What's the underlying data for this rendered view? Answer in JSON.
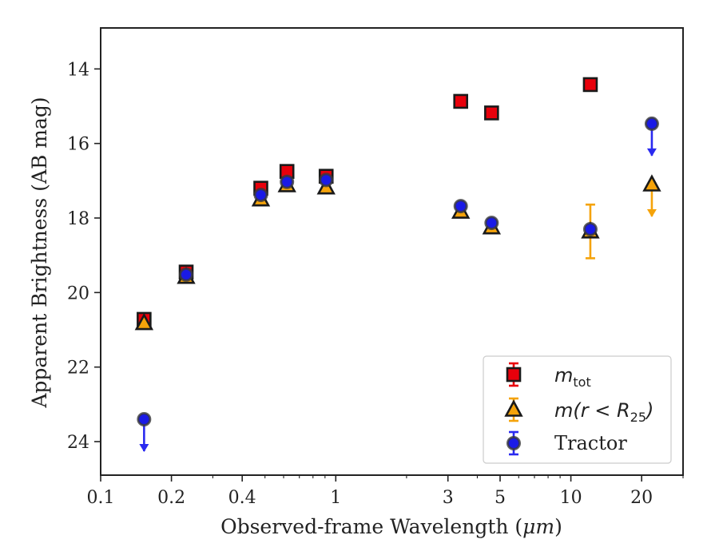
{
  "chart_data": {
    "type": "scatter",
    "xlabel_prefix": "Observed-frame Wavelength (",
    "xlabel_unit": "μm",
    "xlabel_suffix": ")",
    "ylabel": "Apparent Brightness (AB mag)",
    "xscale": "log",
    "xlim": [
      0.1,
      30
    ],
    "ylim": [
      24.9,
      12.9
    ],
    "y_inverted": true,
    "grid": false,
    "legend_position": "lower-right",
    "x_ticks": [
      {
        "value": 0.1,
        "label": "0.1"
      },
      {
        "value": 0.2,
        "label": "0.2"
      },
      {
        "value": 0.4,
        "label": "0.4"
      },
      {
        "value": 1,
        "label": "1"
      },
      {
        "value": 3,
        "label": "3"
      },
      {
        "value": 5,
        "label": "5"
      },
      {
        "value": 10,
        "label": "10"
      },
      {
        "value": 20,
        "label": "20"
      }
    ],
    "y_ticks": [
      {
        "value": 14,
        "label": "14"
      },
      {
        "value": 16,
        "label": "16"
      },
      {
        "value": 18,
        "label": "18"
      },
      {
        "value": 20,
        "label": "20"
      },
      {
        "value": 22,
        "label": "22"
      },
      {
        "value": 24,
        "label": "24"
      }
    ],
    "series": [
      {
        "name": "m_tot",
        "legend_main": "m",
        "legend_sub": "tot",
        "marker": "square",
        "color": "#e8000b",
        "ecolor": "#e8000b",
        "points": [
          {
            "x": 0.153,
            "y": 20.72
          },
          {
            "x": 0.231,
            "y": 19.45
          },
          {
            "x": 0.48,
            "y": 17.2
          },
          {
            "x": 0.62,
            "y": 16.75
          },
          {
            "x": 0.91,
            "y": 16.88
          },
          {
            "x": 3.4,
            "y": 14.87
          },
          {
            "x": 4.6,
            "y": 15.18
          },
          {
            "x": 12.1,
            "y": 14.42
          }
        ]
      },
      {
        "name": "m(r < R_25)",
        "legend_main": "m(r < R",
        "legend_sub": "25",
        "legend_tail": ")",
        "marker": "triangle",
        "color": "#f5a30a",
        "ecolor": "#f5a30a",
        "points": [
          {
            "x": 0.153,
            "y": 20.82
          },
          {
            "x": 0.231,
            "y": 19.58
          },
          {
            "x": 0.48,
            "y": 17.5
          },
          {
            "x": 0.62,
            "y": 17.12
          },
          {
            "x": 0.91,
            "y": 17.18
          },
          {
            "x": 3.4,
            "y": 17.83
          },
          {
            "x": 4.6,
            "y": 18.25
          },
          {
            "x": 12.1,
            "y": 18.36,
            "yerr": 0.72
          },
          {
            "x": 22.1,
            "y": 17.1,
            "upper_limit": true
          }
        ]
      },
      {
        "name": "Tractor",
        "legend_main": "Tractor",
        "marker": "circle",
        "color": "#1a1ae6",
        "ecolor": "#2a2af0",
        "points": [
          {
            "x": 0.153,
            "y": 23.4,
            "upper_limit": true
          },
          {
            "x": 0.231,
            "y": 19.52
          },
          {
            "x": 0.48,
            "y": 17.38
          },
          {
            "x": 0.62,
            "y": 17.03
          },
          {
            "x": 0.91,
            "y": 16.98
          },
          {
            "x": 3.4,
            "y": 17.68
          },
          {
            "x": 4.6,
            "y": 18.13
          },
          {
            "x": 12.1,
            "y": 18.3
          },
          {
            "x": 22.1,
            "y": 15.47,
            "upper_limit": true
          }
        ]
      }
    ]
  }
}
